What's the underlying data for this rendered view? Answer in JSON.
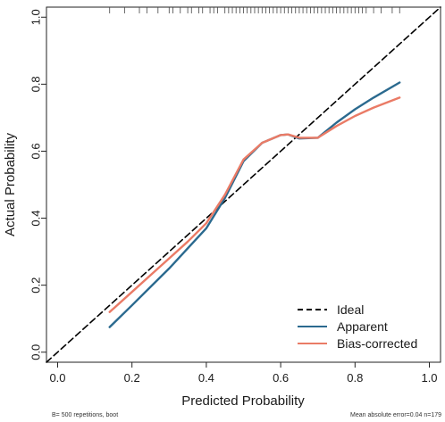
{
  "chart_data": {
    "type": "line",
    "xlabel": "Predicted Probability",
    "ylabel": "Actual Probability",
    "xlim": [
      -0.03,
      1.03
    ],
    "ylim": [
      -0.03,
      1.03
    ],
    "x_ticks": [
      "0.0",
      "0.2",
      "0.4",
      "0.6",
      "0.8",
      "1.0"
    ],
    "y_ticks": [
      "0.0",
      "0.2",
      "0.4",
      "0.6",
      "0.8",
      "1.0"
    ],
    "legend_position": "bottom-right",
    "colors": {
      "ideal": "#000000",
      "apparent": "#2b6a8f",
      "bias_corrected": "#ea7b66"
    },
    "series": [
      {
        "name": "Ideal",
        "style": "dashed",
        "x": [
          -0.03,
          1.03
        ],
        "y": [
          -0.03,
          1.03
        ]
      },
      {
        "name": "Apparent",
        "x": [
          0.14,
          0.2,
          0.25,
          0.3,
          0.35,
          0.4,
          0.45,
          0.5,
          0.55,
          0.6,
          0.62,
          0.65,
          0.7,
          0.75,
          0.8,
          0.85,
          0.92
        ],
        "y": [
          0.075,
          0.14,
          0.195,
          0.25,
          0.31,
          0.37,
          0.46,
          0.57,
          0.625,
          0.648,
          0.65,
          0.638,
          0.64,
          0.685,
          0.725,
          0.76,
          0.805
        ]
      },
      {
        "name": "Bias-corrected",
        "x": [
          0.14,
          0.2,
          0.25,
          0.3,
          0.35,
          0.4,
          0.45,
          0.5,
          0.55,
          0.6,
          0.62,
          0.65,
          0.7,
          0.75,
          0.8,
          0.85,
          0.92
        ],
        "y": [
          0.12,
          0.18,
          0.23,
          0.28,
          0.33,
          0.385,
          0.47,
          0.575,
          0.625,
          0.648,
          0.65,
          0.64,
          0.64,
          0.675,
          0.705,
          0.73,
          0.76
        ]
      }
    ],
    "rug_x": [
      0.14,
      0.18,
      0.22,
      0.24,
      0.27,
      0.3,
      0.31,
      0.33,
      0.35,
      0.36,
      0.38,
      0.39,
      0.41,
      0.42,
      0.43,
      0.45,
      0.46,
      0.47,
      0.48,
      0.49,
      0.5,
      0.51,
      0.52,
      0.53,
      0.54,
      0.55,
      0.56,
      0.57,
      0.58,
      0.59,
      0.6,
      0.61,
      0.62,
      0.63,
      0.64,
      0.65,
      0.66,
      0.67,
      0.68,
      0.69,
      0.7,
      0.71,
      0.72,
      0.73,
      0.74,
      0.75,
      0.76,
      0.77,
      0.78,
      0.79,
      0.8,
      0.81,
      0.82,
      0.83,
      0.85,
      0.87,
      0.9,
      0.92
    ],
    "footnote_left": "B= 500 repetitions, boot",
    "footnote_right": "Mean absolute error=0.04 n=179"
  }
}
